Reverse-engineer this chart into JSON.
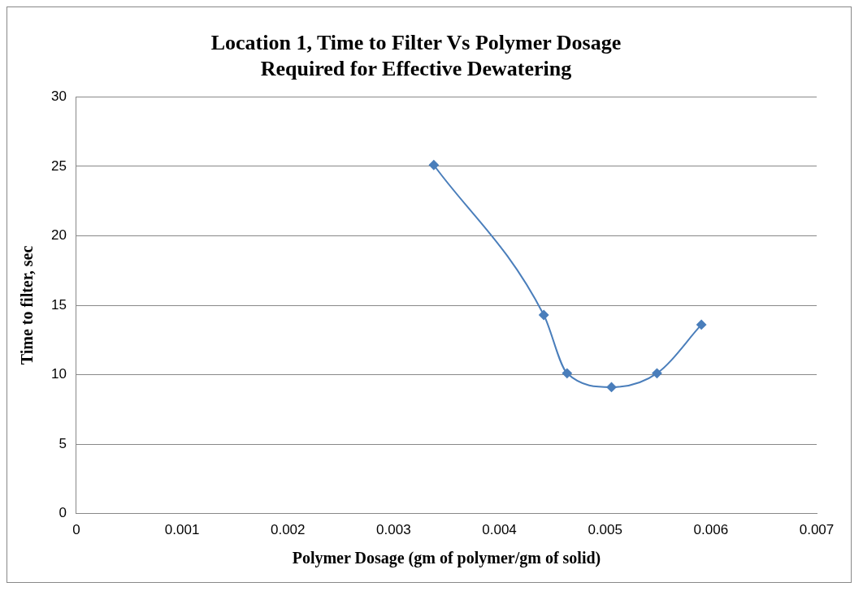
{
  "chart_data": {
    "type": "line",
    "title": [
      "Location 1, Time to Filter Vs Polymer Dosage",
      "Required for Effective Dewatering"
    ],
    "xlabel": "Polymer Dosage (gm of polymer/gm of solid)",
    "ylabel": "Time to filter, sec",
    "x": [
      0.00338,
      0.00442,
      0.00464,
      0.00506,
      0.00549,
      0.00591
    ],
    "series": [
      {
        "color": "#4a7ebb",
        "values": [
          25.1,
          14.3,
          10.1,
          9.1,
          10.1,
          13.6
        ]
      }
    ],
    "xlim": [
      0,
      0.007
    ],
    "xticks": [
      0,
      0.001,
      0.002,
      0.003,
      0.004,
      0.005,
      0.006,
      0.007
    ],
    "ylim": [
      0,
      30
    ],
    "yticks": [
      0,
      5,
      10,
      15,
      20,
      25,
      30
    ],
    "grid": "y",
    "legend": false,
    "marker": "diamond",
    "line_style": "solid"
  }
}
